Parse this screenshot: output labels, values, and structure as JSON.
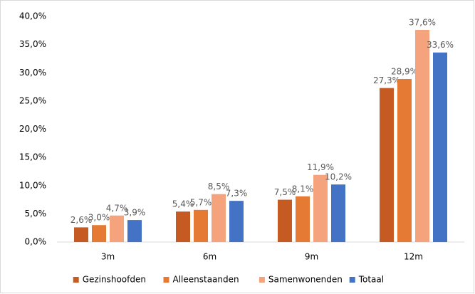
{
  "chart_data": {
    "type": "bar",
    "categories": [
      "3m",
      "6m",
      "9m",
      "12m"
    ],
    "series": [
      {
        "name": "Gezinshoofden",
        "color": "#c55a22",
        "values": [
          2.6,
          5.4,
          7.5,
          27.3
        ],
        "value_labels": [
          "2,6%",
          "5,4%",
          "7,5%",
          "27,3%"
        ]
      },
      {
        "name": "Alleenstaanden",
        "color": "#e57a34",
        "values": [
          3.0,
          5.7,
          8.1,
          28.9
        ],
        "value_labels": [
          "3,0%",
          "5,7%",
          "8,1%",
          "28,9%"
        ]
      },
      {
        "name": "Samenwonenden",
        "color": "#f4a37c",
        "values": [
          4.7,
          8.5,
          11.9,
          37.6
        ],
        "value_labels": [
          "4,7%",
          "8,5%",
          "11,9%",
          "37,6%"
        ]
      },
      {
        "name": "Totaal",
        "color": "#4472c4",
        "values": [
          3.9,
          7.3,
          10.2,
          33.6
        ],
        "value_labels": [
          "3,9%",
          "7,3%",
          "10,2%",
          "33,6%"
        ]
      }
    ],
    "ylim": [
      0,
      40
    ],
    "yticks": [
      {
        "value": 0,
        "label": "0,0%"
      },
      {
        "value": 5,
        "label": "5,0%"
      },
      {
        "value": 10,
        "label": "10,0%"
      },
      {
        "value": 15,
        "label": "15,0%"
      },
      {
        "value": 20,
        "label": "20,0%"
      },
      {
        "value": 25,
        "label": "25,0%"
      },
      {
        "value": 30,
        "label": "30,0%"
      },
      {
        "value": 35,
        "label": "35,0%"
      },
      {
        "value": 40,
        "label": "40,0%"
      }
    ],
    "grid": false,
    "legend": "bottom"
  }
}
